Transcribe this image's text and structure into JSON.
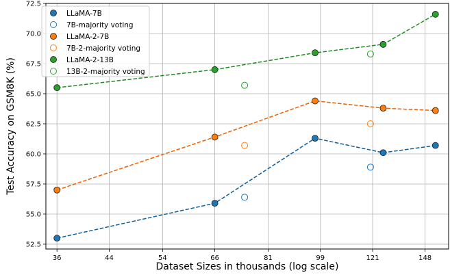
{
  "chart_data": {
    "type": "scatter",
    "xlabel": "Dataset Sizes in thousands (log scale)",
    "ylabel": "Test Accuracy on GSM8K (%)",
    "x_scale": "log",
    "xlim": [
      34.5,
      162
    ],
    "ylim": [
      52.1,
      72.5
    ],
    "x_ticks": [
      36,
      44,
      54,
      66,
      81,
      99,
      121,
      148
    ],
    "y_ticks": [
      52.5,
      55.0,
      57.5,
      60.0,
      62.5,
      65.0,
      67.5,
      70.0,
      72.5
    ],
    "grid": true,
    "legend_position": "top-left",
    "series": [
      {
        "name": "LLaMA-7B",
        "style": "line-filled",
        "color": "#1f77b4",
        "dark_color": "#0d5f9a",
        "points": [
          [
            36,
            53.0
          ],
          [
            66,
            55.9
          ],
          [
            97,
            61.3
          ],
          [
            126,
            60.1
          ],
          [
            154,
            60.7
          ]
        ]
      },
      {
        "name": "7B-majority voting",
        "style": "hollow",
        "color": "#1f77b4",
        "points": [
          [
            74,
            56.4
          ],
          [
            120,
            58.9
          ]
        ]
      },
      {
        "name": "LLaMA-2-7B",
        "style": "line-filled",
        "color": "#ff7f0e",
        "dark_color": "#ee6000",
        "points": [
          [
            36,
            57.0
          ],
          [
            66,
            61.4
          ],
          [
            97,
            64.4
          ],
          [
            126,
            63.8
          ],
          [
            154,
            63.6
          ]
        ]
      },
      {
        "name": "7B-2-majority voting",
        "style": "hollow",
        "color": "#ff7f0e",
        "points": [
          [
            74,
            60.7
          ],
          [
            120,
            62.5
          ]
        ]
      },
      {
        "name": "LLaMA-2-13B",
        "style": "line-filled",
        "color": "#2ca02c",
        "dark_color": "#1f8a1f",
        "points": [
          [
            36,
            65.5
          ],
          [
            66,
            67.0
          ],
          [
            97,
            68.4
          ],
          [
            126,
            69.1
          ],
          [
            154,
            71.6
          ]
        ]
      },
      {
        "name": "13B-2-majority voting",
        "style": "hollow",
        "color": "#2ca02c",
        "points": [
          [
            74,
            65.7
          ],
          [
            120,
            68.3
          ]
        ]
      }
    ]
  }
}
